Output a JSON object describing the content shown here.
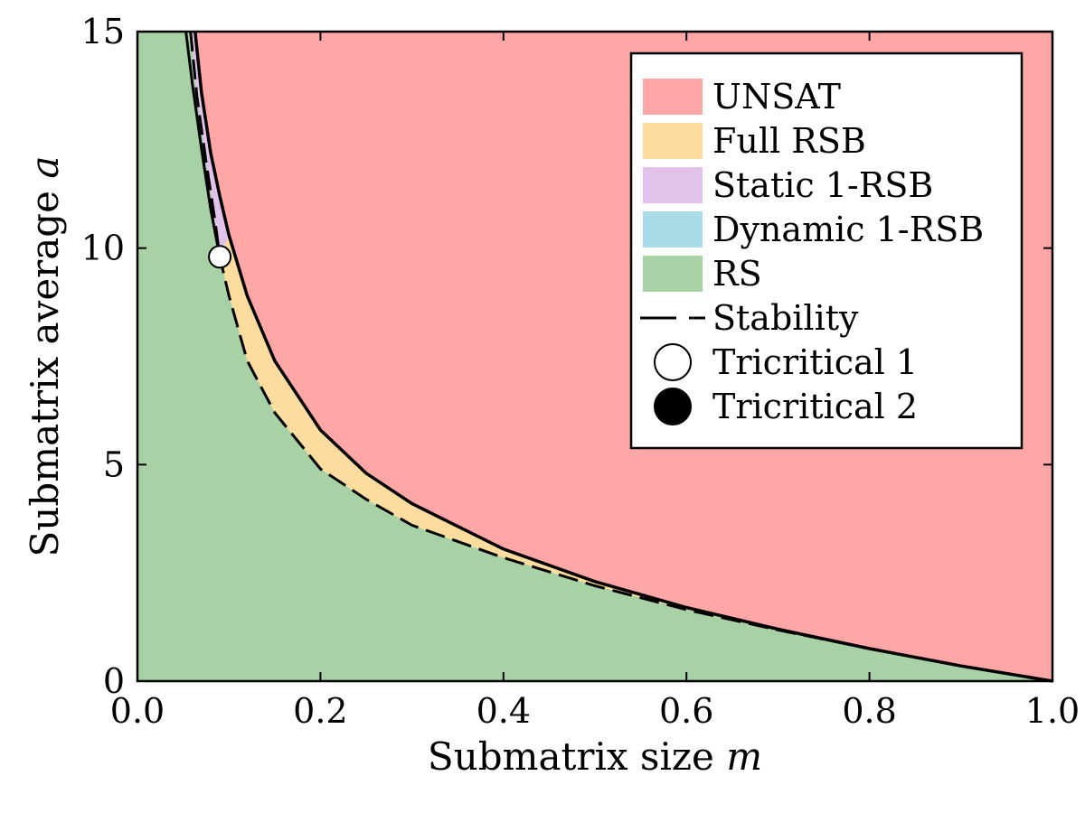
{
  "chart_data": {
    "type": "area",
    "title": "",
    "xlabel": "Submatrix size",
    "xlabel_var": "m",
    "ylabel": "Submatrix average",
    "ylabel_var": "a",
    "xlim": [
      0.0,
      1.0
    ],
    "ylim": [
      0,
      15
    ],
    "xticks": [
      "0.0",
      "0.2",
      "0.4",
      "0.6",
      "0.8",
      "1.0"
    ],
    "xtick_values": [
      0.0,
      0.2,
      0.4,
      0.6,
      0.8,
      1.0
    ],
    "yticks": [
      "0",
      "5",
      "10",
      "15"
    ],
    "ytick_values": [
      0,
      5,
      10,
      15
    ],
    "grid": false,
    "legend_position": "top-right",
    "regions": [
      {
        "name": "UNSAT",
        "color": "#ffa6a6"
      },
      {
        "name": "Full RSB",
        "color": "#fddca0"
      },
      {
        "name": "Static 1-RSB",
        "color": "#e2c2ea"
      },
      {
        "name": "Dynamic 1-RSB",
        "color": "#a8dae8"
      },
      {
        "name": "RS",
        "color": "#a8d2a6"
      }
    ],
    "unsat_boundary": {
      "x": [
        0.063,
        0.07,
        0.08,
        0.09,
        0.1,
        0.12,
        0.15,
        0.2,
        0.25,
        0.3,
        0.4,
        0.5,
        0.6,
        0.7,
        0.8,
        0.9,
        1.0
      ],
      "y": [
        15.0,
        13.6,
        12.2,
        11.2,
        10.3,
        8.9,
        7.4,
        5.8,
        4.8,
        4.1,
        3.05,
        2.3,
        1.7,
        1.2,
        0.75,
        0.35,
        0.0
      ]
    },
    "inner_boundary": {
      "x": [
        0.053,
        0.06,
        0.07,
        0.08,
        0.09
      ],
      "y": [
        15.0,
        13.8,
        12.3,
        10.9,
        9.8
      ]
    },
    "stability_line": {
      "name": "Stability",
      "style": "dashed",
      "x": [
        0.058,
        0.065,
        0.075,
        0.085,
        0.09,
        0.1,
        0.12,
        0.15,
        0.2,
        0.25,
        0.3,
        0.4,
        0.5,
        0.6,
        0.7,
        0.8,
        0.9,
        1.0
      ],
      "y": [
        15.0,
        13.5,
        12.0,
        10.6,
        9.8,
        8.9,
        7.4,
        6.2,
        4.9,
        4.2,
        3.6,
        2.85,
        2.2,
        1.65,
        1.18,
        0.75,
        0.35,
        0.0
      ]
    },
    "points": [
      {
        "name": "Tricritical 1",
        "x": 0.09,
        "y": 9.8,
        "marker": "open-circle"
      }
    ],
    "legend": [
      {
        "label": "UNSAT",
        "kind": "patch",
        "color": "#ffa6a6"
      },
      {
        "label": "Full RSB",
        "kind": "patch",
        "color": "#fddca0"
      },
      {
        "label": "Static 1-RSB",
        "kind": "patch",
        "color": "#e2c2ea"
      },
      {
        "label": "Dynamic 1-RSB",
        "kind": "patch",
        "color": "#a8dae8"
      },
      {
        "label": "RS",
        "kind": "patch",
        "color": "#a8d2a6"
      },
      {
        "label": "Stability",
        "kind": "dashed-line",
        "color": "#000000"
      },
      {
        "label": "Tricritical 1",
        "kind": "open-circle",
        "color": "#ffffff"
      },
      {
        "label": "Tricritical 2",
        "kind": "filled-circle",
        "color": "#000000"
      }
    ]
  }
}
